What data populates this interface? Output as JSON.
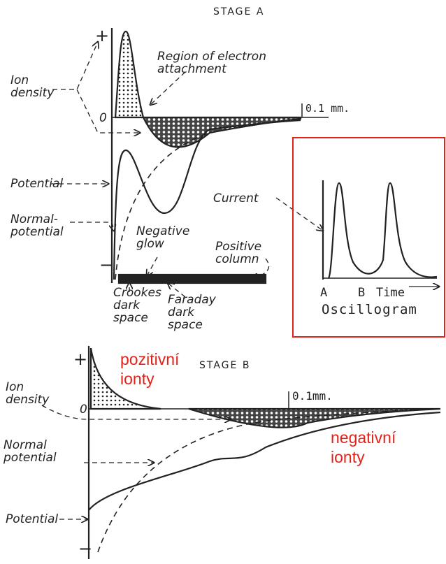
{
  "stage_a": {
    "title": "STAGE A",
    "plus": "+",
    "minus": "−",
    "zero": "0",
    "scale": "0.1 mm.",
    "ion_density": "Ion\ndensity",
    "region": "Region of electron\nattachment",
    "potential": "Potential",
    "normal_potential": "Normal-\npotential",
    "negative_glow": "Negative\nglow",
    "positive_column": "Positive\ncolumn",
    "crookes": "Crookes\ndark\nspace",
    "faraday": "Faraday\ndark\nspace"
  },
  "oscillogram": {
    "current": "Current",
    "a": "A",
    "b": "B",
    "time": "Time",
    "title": "Oscillogram"
  },
  "stage_b": {
    "title": "STAGE B",
    "plus": "+",
    "minus": "−",
    "zero": "0",
    "scale": "0.1mm.",
    "ion_density": "Ion\ndensity",
    "normal_potential": "Normal\npotential",
    "potential": "Potential"
  },
  "annotations": {
    "positive_ions": "pozitivní\nionty",
    "negative_ions": "negativní\nionty"
  }
}
